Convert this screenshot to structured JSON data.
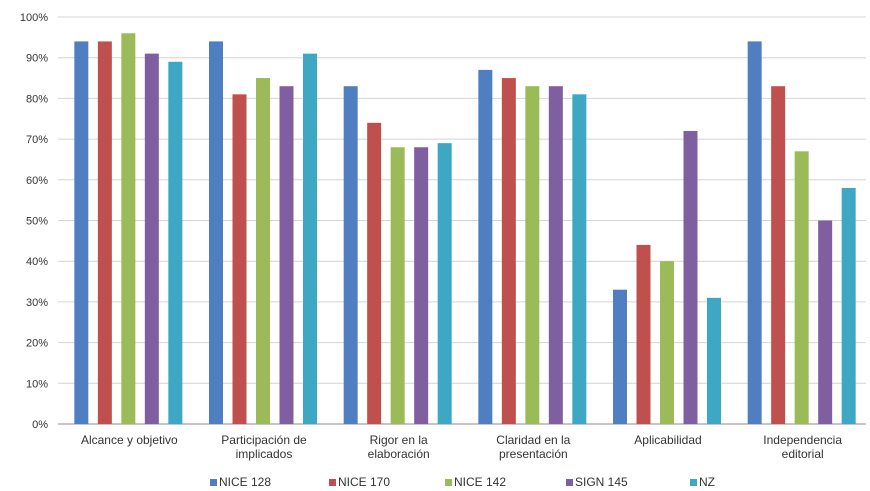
{
  "chart_data": {
    "type": "bar",
    "categories": [
      [
        "Alcance y objetivo"
      ],
      [
        "Participación de",
        "implicados"
      ],
      [
        "Rigor en la",
        "elaboración"
      ],
      [
        "Claridad en la",
        "presentación"
      ],
      [
        "Aplicabilidad"
      ],
      [
        "Independencia",
        "editorial"
      ]
    ],
    "series": [
      {
        "name": "NICE 128",
        "color": "#4f7ec1",
        "values": [
          94,
          94,
          83,
          87,
          33,
          94
        ]
      },
      {
        "name": "NICE 170",
        "color": "#c0504d",
        "values": [
          94,
          81,
          74,
          85,
          44,
          83
        ]
      },
      {
        "name": "NICE 142",
        "color": "#9bbb59",
        "values": [
          96,
          85,
          68,
          83,
          40,
          67
        ]
      },
      {
        "name": "SIGN 145",
        "color": "#7f5fa0",
        "values": [
          91,
          83,
          68,
          83,
          72,
          50
        ]
      },
      {
        "name": "NZ",
        "color": "#3ea7c4",
        "values": [
          89,
          91,
          69,
          81,
          31,
          58
        ]
      }
    ],
    "ylim": [
      0,
      100
    ],
    "yticks": [
      "0%",
      "10%",
      "20%",
      "30%",
      "40%",
      "50%",
      "60%",
      "70%",
      "80%",
      "90%",
      "100%"
    ],
    "grid": true,
    "legend": "bottom",
    "title": "",
    "xlabel": "",
    "ylabel": ""
  }
}
